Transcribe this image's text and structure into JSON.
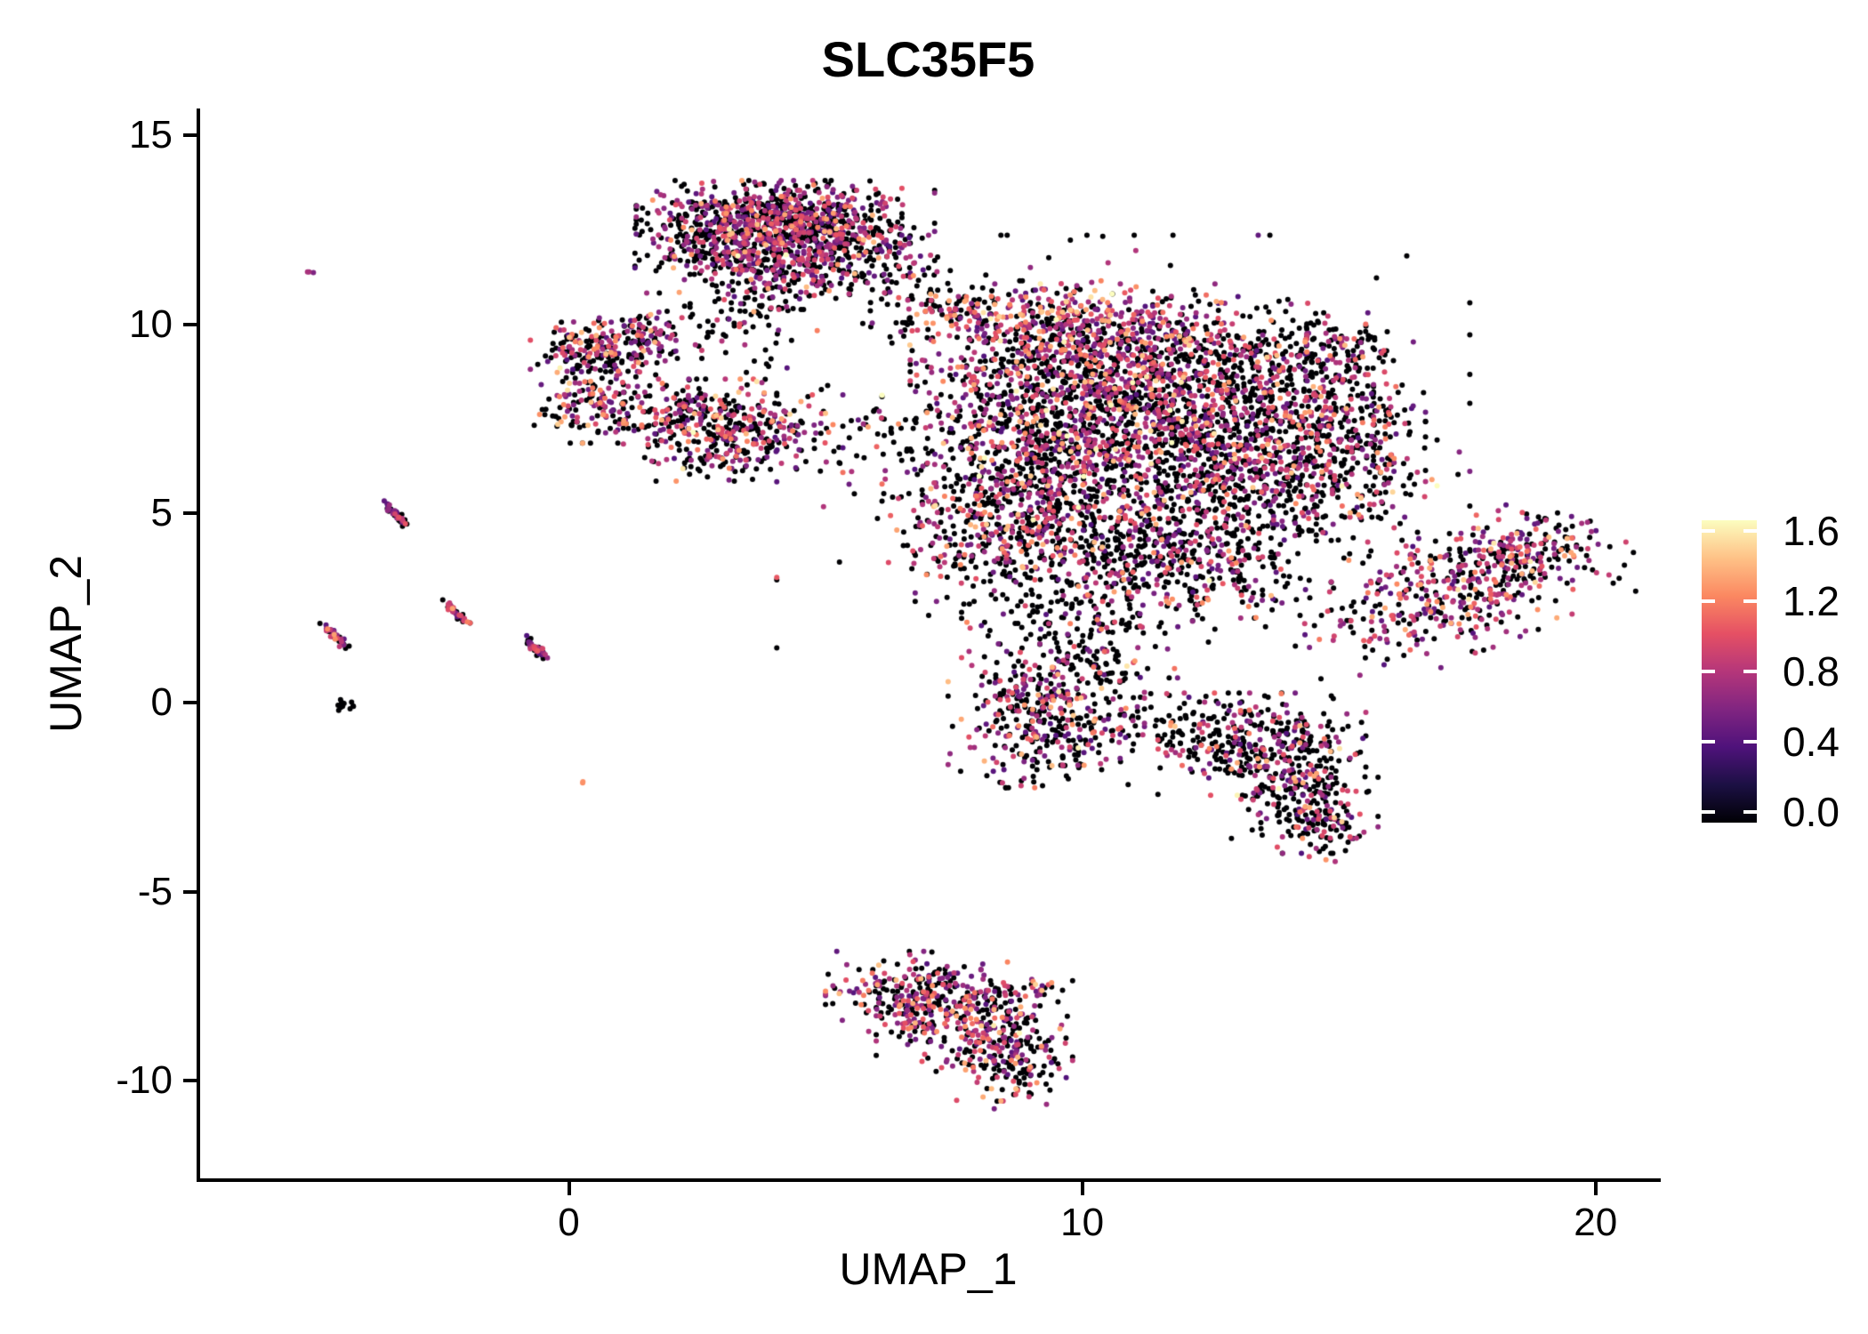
{
  "title": "SLC35F5",
  "chart_data": {
    "type": "scatter",
    "title": "SLC35F5",
    "xlabel": "UMAP_1",
    "ylabel": "UMAP_2",
    "xlim": [
      -7.2,
      21.2
    ],
    "ylim": [
      -12.6,
      15.7
    ],
    "grid": false,
    "legend_position": "right",
    "x_ticks": [
      {
        "label": "0",
        "value": 0
      },
      {
        "label": "10",
        "value": 10
      },
      {
        "label": "20",
        "value": 20
      }
    ],
    "y_ticks": [
      {
        "label": "-10",
        "value": -10
      },
      {
        "label": "-5",
        "value": -5
      },
      {
        "label": "0",
        "value": 0
      },
      {
        "label": "5",
        "value": 5
      },
      {
        "label": "10",
        "value": 10
      },
      {
        "label": "15",
        "value": 15
      }
    ],
    "color_scale": {
      "name": "magma",
      "domain": [
        0,
        1.6
      ],
      "ticks": [
        {
          "label": "1.6",
          "value": 1.6
        },
        {
          "label": "1.2",
          "value": 1.2
        },
        {
          "label": "0.8",
          "value": 0.8
        },
        {
          "label": "0.4",
          "value": 0.4
        },
        {
          "label": "0.0",
          "value": 0.0
        }
      ],
      "stops": [
        [
          0.0,
          "#000004"
        ],
        [
          0.125,
          "#1c1044"
        ],
        [
          0.25,
          "#4f127b"
        ],
        [
          0.375,
          "#812581"
        ],
        [
          0.5,
          "#b5367a"
        ],
        [
          0.625,
          "#e55064"
        ],
        [
          0.75,
          "#fb8861"
        ],
        [
          0.875,
          "#fec287"
        ],
        [
          1.0,
          "#fcfdbf"
        ]
      ]
    },
    "point_radius_px": 3,
    "profiles": {
      "dense": {
        "p0": 0.52,
        "pmid": 0.37,
        "phigh": 0.1,
        "mid": [
          0.4,
          1.0
        ],
        "high": [
          1.0,
          1.4
        ],
        "bright": [
          1.4,
          1.62
        ]
      },
      "top": {
        "p0": 0.5,
        "pmid": 0.43,
        "phigh": 0.065,
        "mid": [
          0.4,
          1.0
        ],
        "high": [
          1.0,
          1.4
        ],
        "bright": [
          1.4,
          1.62
        ]
      },
      "orangeRich": {
        "p0": 0.26,
        "pmid": 0.43,
        "phigh": 0.28,
        "mid": [
          0.45,
          1.0
        ],
        "high": [
          1.0,
          1.45
        ],
        "bright": [
          1.45,
          1.62
        ]
      },
      "pink": {
        "p0": 0.42,
        "pmid": 0.44,
        "phigh": 0.135,
        "mid": [
          0.4,
          1.0
        ],
        "high": [
          1.0,
          1.4
        ],
        "bright": [
          1.4,
          1.62
        ]
      },
      "darker": {
        "p0": 0.62,
        "pmid": 0.3,
        "phigh": 0.075,
        "mid": [
          0.4,
          1.0
        ],
        "high": [
          1.0,
          1.4
        ],
        "bright": [
          1.4,
          1.62
        ]
      },
      "sparse": {
        "p0": 0.78,
        "pmid": 0.18,
        "phigh": 0.04,
        "mid": [
          0.4,
          1.0
        ],
        "high": [
          1.0,
          1.35
        ],
        "bright": [
          1.35,
          1.5
        ]
      },
      "streak": {
        "p0": 0.45,
        "pmid": 0.5,
        "phigh": 0.05,
        "mid": [
          0.4,
          1.0
        ],
        "high": [
          1.0,
          1.3
        ],
        "bright": [
          1.3,
          1.4
        ]
      },
      "black": {
        "p0": 1.0,
        "pmid": 0.0,
        "phigh": 0.0,
        "mid": [
          0.4,
          1.0
        ],
        "high": [
          1.0,
          1.4
        ],
        "bright": [
          1.4,
          1.62
        ]
      },
      "orange1": {
        "p0": 0.0,
        "pmid": 0.0,
        "phigh": 1.0,
        "mid": [
          0.4,
          1.0
        ],
        "high": [
          1.1,
          1.3
        ],
        "bright": [
          1.3,
          1.4
        ]
      },
      "purple1": {
        "p0": 0.0,
        "pmid": 1.0,
        "phigh": 0.0,
        "mid": [
          0.55,
          0.85
        ],
        "high": [
          1.0,
          1.4
        ],
        "bright": [
          1.4,
          1.62
        ]
      }
    },
    "clusters": [
      {
        "cx": 3.9,
        "cy": 12.85,
        "sx": 1.15,
        "sy": 0.42,
        "n": 520,
        "profile": "top"
      },
      {
        "cx": 3.2,
        "cy": 12.1,
        "sx": 0.85,
        "sy": 0.5,
        "n": 300,
        "profile": "top"
      },
      {
        "cx": 5.1,
        "cy": 12.3,
        "sx": 0.9,
        "sy": 0.55,
        "n": 280,
        "profile": "top"
      },
      {
        "cx": 4.4,
        "cy": 11.4,
        "sx": 1.0,
        "sy": 0.45,
        "n": 200,
        "profile": "top"
      },
      {
        "cx": 3.6,
        "cy": 10.3,
        "sx": 0.55,
        "sy": 0.7,
        "n": 80,
        "profile": "sparse"
      },
      {
        "cx": 6.5,
        "cy": 11.0,
        "sx": 0.5,
        "sy": 0.8,
        "n": 55,
        "profile": "sparse"
      },
      {
        "cx": 7.3,
        "cy": 10.4,
        "sx": 0.5,
        "sy": 0.4,
        "n": 40,
        "profile": "sparse"
      },
      {
        "cx": 2.2,
        "cy": 9.7,
        "sx": 0.5,
        "sy": 0.5,
        "n": 30,
        "profile": "sparse"
      },
      {
        "cx": 0.6,
        "cy": 9.3,
        "sx": 0.6,
        "sy": 0.42,
        "n": 220,
        "profile": "dense"
      },
      {
        "cx": 1.6,
        "cy": 9.85,
        "sx": 0.3,
        "sy": 0.25,
        "n": 40,
        "profile": "dense"
      },
      {
        "cx": 0.45,
        "cy": 7.8,
        "sx": 0.5,
        "sy": 0.42,
        "n": 135,
        "profile": "dense"
      },
      {
        "cx": 3.2,
        "cy": 7.2,
        "sx": 0.95,
        "sy": 0.6,
        "n": 400,
        "profile": "dense"
      },
      {
        "cx": 2.15,
        "cy": 7.75,
        "sx": 0.4,
        "sy": 0.35,
        "n": 60,
        "profile": "dense"
      },
      {
        "cx": 5.8,
        "cy": 7.3,
        "sx": 0.7,
        "sy": 0.5,
        "n": 25,
        "profile": "sparse"
      },
      {
        "cx": 8.9,
        "cy": 10.2,
        "sx": 1.1,
        "sy": 0.42,
        "n": 240,
        "profile": "orangeRich"
      },
      {
        "cx": 11.0,
        "cy": 9.6,
        "sx": 1.5,
        "sy": 0.65,
        "n": 420,
        "profile": "pink"
      },
      {
        "cx": 9.8,
        "cy": 8.5,
        "sx": 1.4,
        "sy": 0.8,
        "n": 480,
        "profile": "dense"
      },
      {
        "cx": 12.3,
        "cy": 8.0,
        "sx": 1.5,
        "sy": 0.9,
        "n": 560,
        "profile": "dense"
      },
      {
        "cx": 8.8,
        "cy": 6.8,
        "sx": 1.2,
        "sy": 1.0,
        "n": 420,
        "profile": "dense"
      },
      {
        "cx": 11.2,
        "cy": 6.2,
        "sx": 1.5,
        "sy": 1.1,
        "n": 560,
        "profile": "dense"
      },
      {
        "cx": 13.6,
        "cy": 6.3,
        "sx": 1.1,
        "sy": 1.1,
        "n": 380,
        "profile": "darker"
      },
      {
        "cx": 8.3,
        "cy": 4.7,
        "sx": 0.95,
        "sy": 0.9,
        "n": 300,
        "profile": "dense"
      },
      {
        "cx": 10.4,
        "cy": 4.0,
        "sx": 1.2,
        "sy": 0.85,
        "n": 300,
        "profile": "darker"
      },
      {
        "cx": 12.6,
        "cy": 3.8,
        "sx": 1.0,
        "sy": 0.8,
        "n": 240,
        "profile": "darker"
      },
      {
        "cx": 15.0,
        "cy": 7.6,
        "sx": 0.75,
        "sy": 1.2,
        "n": 260,
        "profile": "darker"
      },
      {
        "cx": 15.9,
        "cy": 6.0,
        "sx": 0.45,
        "sy": 0.9,
        "n": 70,
        "profile": "darker"
      },
      {
        "cx": 14.6,
        "cy": 9.4,
        "sx": 0.6,
        "sy": 0.55,
        "n": 90,
        "profile": "sparse"
      },
      {
        "cx": 10.8,
        "cy": 6.5,
        "sx": 3.0,
        "sy": 2.6,
        "n": 400,
        "profile": "sparse"
      },
      {
        "cx": 9.9,
        "cy": 2.3,
        "sx": 1.0,
        "sy": 0.8,
        "n": 130,
        "profile": "sparse"
      },
      {
        "cx": 17.3,
        "cy": 3.0,
        "sx": 1.55,
        "sy": 0.75,
        "n": 430,
        "profile": "pink",
        "rot": 28
      },
      {
        "cx": 18.7,
        "cy": 4.0,
        "sx": 0.6,
        "sy": 0.45,
        "n": 110,
        "profile": "pink"
      },
      {
        "cx": 9.3,
        "cy": -0.45,
        "sx": 0.85,
        "sy": 0.8,
        "n": 400,
        "profile": "dense"
      },
      {
        "cx": 10.3,
        "cy": 1.3,
        "sx": 0.5,
        "sy": 0.6,
        "n": 70,
        "profile": "sparse"
      },
      {
        "cx": 11.7,
        "cy": -0.6,
        "sx": 1.1,
        "sy": 0.4,
        "n": 80,
        "profile": "sparse"
      },
      {
        "cx": 13.5,
        "cy": -1.1,
        "sx": 0.9,
        "sy": 0.6,
        "n": 280,
        "profile": "darker"
      },
      {
        "cx": 14.3,
        "cy": -2.3,
        "sx": 0.65,
        "sy": 0.75,
        "n": 220,
        "profile": "darker"
      },
      {
        "cx": 14.7,
        "cy": -3.3,
        "sx": 0.35,
        "sy": 0.4,
        "n": 70,
        "profile": "darker"
      },
      {
        "cx": 6.8,
        "cy": -7.7,
        "sx": 0.8,
        "sy": 0.5,
        "n": 220,
        "profile": "pink"
      },
      {
        "cx": 7.9,
        "cy": -8.4,
        "sx": 0.85,
        "sy": 0.6,
        "n": 260,
        "profile": "pink"
      },
      {
        "cx": 8.6,
        "cy": -9.5,
        "sx": 0.5,
        "sy": 0.55,
        "n": 150,
        "profile": "dense"
      },
      {
        "cx": 9.3,
        "cy": -7.5,
        "sx": 0.25,
        "sy": 0.2,
        "n": 15,
        "profile": "dense"
      },
      {
        "cx": -3.35,
        "cy": 4.95,
        "sx": 0.2,
        "sy": 0.04,
        "n": 42,
        "profile": "streak",
        "rot": -54
      },
      {
        "cx": -2.2,
        "cy": 2.4,
        "sx": 0.18,
        "sy": 0.04,
        "n": 38,
        "profile": "streak",
        "rot": -54
      },
      {
        "cx": -4.55,
        "cy": 1.75,
        "sx": 0.2,
        "sy": 0.045,
        "n": 42,
        "profile": "streak",
        "rot": -54
      },
      {
        "cx": -0.65,
        "cy": 1.45,
        "sx": 0.19,
        "sy": 0.045,
        "n": 40,
        "profile": "streak",
        "rot": -54
      },
      {
        "cx": -4.35,
        "cy": -0.05,
        "sx": 0.12,
        "sy": 0.08,
        "n": 14,
        "profile": "black"
      },
      {
        "cx": 0.3,
        "cy": -2.1,
        "sx": 0.03,
        "sy": 0.03,
        "n": 2,
        "profile": "orange1"
      },
      {
        "cx": -5.05,
        "cy": 11.35,
        "sx": 0.05,
        "sy": 0.04,
        "n": 3,
        "profile": "purple1"
      }
    ]
  },
  "legend": {
    "max_label": "1.6",
    "min_label": "0.0"
  }
}
